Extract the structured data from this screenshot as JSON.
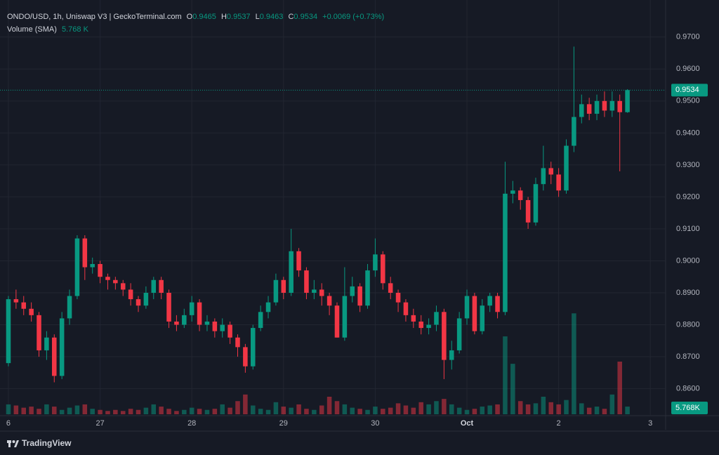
{
  "header": {
    "symbol": "ONDO/USD, 1h, Uniswap V3 | GeckoTerminal.com",
    "open_label": "O",
    "open": "0.9465",
    "high_label": "H",
    "high": "0.9537",
    "low_label": "L",
    "low": "0.9463",
    "close_label": "C",
    "close": "0.9534",
    "change": "+0.0069 (+0.73%)",
    "volume_label": "Volume (SMA)",
    "volume_value": "5.768 K"
  },
  "chart_data": {
    "type": "candlestick",
    "up_color": "#089981",
    "down_color": "#f23645",
    "grid": true,
    "x": [
      0,
      2,
      4,
      6,
      8,
      10,
      12,
      14,
      16,
      18,
      20,
      22,
      24,
      26,
      28,
      30,
      32,
      34,
      36,
      38,
      40,
      42,
      44,
      46,
      48,
      50,
      52,
      54,
      56,
      58,
      60,
      62,
      64,
      66,
      68,
      70,
      72,
      74,
      76,
      78,
      80,
      82,
      84,
      86,
      88,
      90,
      92,
      94,
      96,
      98,
      100,
      102,
      104,
      106,
      108,
      110,
      112,
      114,
      116,
      118,
      120,
      122,
      124,
      126,
      128,
      130,
      132,
      134,
      136,
      138,
      140,
      142,
      144,
      146,
      148,
      150,
      152,
      154,
      156,
      158,
      160,
      162
    ],
    "open": [
      0.868,
      0.888,
      0.887,
      0.885,
      0.883,
      0.872,
      0.876,
      0.864,
      0.882,
      0.889,
      0.907,
      0.898,
      0.899,
      0.895,
      0.894,
      0.893,
      0.891,
      0.888,
      0.886,
      0.89,
      0.894,
      0.89,
      0.881,
      0.88,
      0.883,
      0.887,
      0.88,
      0.881,
      0.878,
      0.88,
      0.876,
      0.873,
      0.867,
      0.879,
      0.884,
      0.887,
      0.894,
      0.89,
      0.903,
      0.897,
      0.89,
      0.891,
      0.889,
      0.886,
      0.876,
      0.889,
      0.892,
      0.886,
      0.897,
      0.902,
      0.893,
      0.89,
      0.887,
      0.883,
      0.881,
      0.879,
      0.88,
      0.884,
      0.869,
      0.872,
      0.882,
      0.889,
      0.878,
      0.886,
      0.889,
      0.884,
      0.921,
      0.922,
      0.919,
      0.912,
      0.924,
      0.929,
      0.927,
      0.922,
      0.936,
      0.945,
      0.949,
      0.946,
      0.95,
      0.947,
      0.95,
      0.9465
    ],
    "high": [
      0.889,
      0.891,
      0.889,
      0.887,
      0.884,
      0.878,
      0.877,
      0.884,
      0.891,
      0.908,
      0.908,
      0.901,
      0.9,
      0.896,
      0.895,
      0.894,
      0.893,
      0.889,
      0.892,
      0.895,
      0.895,
      0.891,
      0.883,
      0.885,
      0.889,
      0.888,
      0.883,
      0.882,
      0.882,
      0.881,
      0.877,
      0.874,
      0.88,
      0.886,
      0.889,
      0.896,
      0.895,
      0.91,
      0.904,
      0.898,
      0.894,
      0.893,
      0.89,
      0.887,
      0.898,
      0.895,
      0.893,
      0.899,
      0.907,
      0.903,
      0.895,
      0.891,
      0.888,
      0.885,
      0.883,
      0.882,
      0.886,
      0.885,
      0.875,
      0.884,
      0.891,
      0.89,
      0.888,
      0.89,
      0.89,
      0.931,
      0.925,
      0.923,
      0.92,
      0.926,
      0.936,
      0.931,
      0.929,
      0.938,
      0.967,
      0.952,
      0.951,
      0.952,
      0.953,
      0.953,
      0.952,
      0.9537
    ],
    "low": [
      0.867,
      0.885,
      0.883,
      0.881,
      0.87,
      0.869,
      0.862,
      0.863,
      0.88,
      0.888,
      0.894,
      0.896,
      0.893,
      0.891,
      0.891,
      0.889,
      0.886,
      0.884,
      0.885,
      0.888,
      0.888,
      0.879,
      0.878,
      0.879,
      0.881,
      0.878,
      0.878,
      0.876,
      0.876,
      0.874,
      0.87,
      0.865,
      0.866,
      0.878,
      0.882,
      0.886,
      0.888,
      0.889,
      0.895,
      0.888,
      0.888,
      0.886,
      0.883,
      0.876,
      0.875,
      0.887,
      0.884,
      0.885,
      0.895,
      0.891,
      0.888,
      0.884,
      0.881,
      0.879,
      0.877,
      0.877,
      0.878,
      0.863,
      0.866,
      0.871,
      0.88,
      0.877,
      0.877,
      0.884,
      0.882,
      0.883,
      0.918,
      0.916,
      0.91,
      0.911,
      0.922,
      0.924,
      0.92,
      0.921,
      0.934,
      0.943,
      0.944,
      0.944,
      0.945,
      0.945,
      0.928,
      0.9463
    ],
    "close": [
      0.888,
      0.887,
      0.885,
      0.883,
      0.872,
      0.876,
      0.864,
      0.882,
      0.889,
      0.907,
      0.898,
      0.899,
      0.895,
      0.894,
      0.893,
      0.891,
      0.888,
      0.886,
      0.89,
      0.894,
      0.89,
      0.881,
      0.88,
      0.883,
      0.887,
      0.88,
      0.881,
      0.878,
      0.88,
      0.876,
      0.873,
      0.867,
      0.879,
      0.884,
      0.887,
      0.894,
      0.89,
      0.903,
      0.897,
      0.89,
      0.891,
      0.889,
      0.886,
      0.876,
      0.889,
      0.892,
      0.886,
      0.897,
      0.902,
      0.893,
      0.89,
      0.887,
      0.883,
      0.881,
      0.879,
      0.88,
      0.884,
      0.869,
      0.872,
      0.882,
      0.889,
      0.878,
      0.886,
      0.889,
      0.884,
      0.921,
      0.922,
      0.919,
      0.912,
      0.924,
      0.929,
      0.927,
      0.922,
      0.936,
      0.945,
      0.949,
      0.946,
      0.95,
      0.947,
      0.95,
      0.9465,
      0.9534
    ],
    "volume": [
      9000,
      8000,
      6000,
      7000,
      5000,
      9000,
      7000,
      4000,
      6000,
      8000,
      9000,
      5000,
      4000,
      3000,
      4000,
      3000,
      5000,
      4000,
      6000,
      9000,
      7000,
      5000,
      3000,
      4000,
      6000,
      5000,
      4000,
      5000,
      9000,
      6000,
      12000,
      18000,
      8000,
      5000,
      4000,
      11000,
      7000,
      6000,
      9000,
      5000,
      4000,
      8000,
      16000,
      12000,
      9000,
      6000,
      5000,
      4000,
      7000,
      5000,
      6000,
      10000,
      8000,
      6000,
      11000,
      9000,
      12000,
      14000,
      9000,
      6000,
      4000,
      5000,
      7000,
      8000,
      9000,
      71000,
      46000,
      12000,
      9000,
      10000,
      16000,
      11000,
      9000,
      13000,
      92000,
      10000,
      6000,
      7000,
      5000,
      18000,
      48000,
      7000
    ],
    "xlim": [
      -2.2,
      172
    ],
    "xticks": [
      {
        "value": 0,
        "label": "6"
      },
      {
        "value": 24,
        "label": "27"
      },
      {
        "value": 48,
        "label": "28"
      },
      {
        "value": 72,
        "label": "29"
      },
      {
        "value": 96,
        "label": "30"
      },
      {
        "value": 120,
        "label": "Oct"
      },
      {
        "value": 144,
        "label": "2"
      },
      {
        "value": 168,
        "label": "3"
      }
    ],
    "ylim": [
      0.852,
      0.975
    ],
    "yticks": [
      {
        "value": 0.86,
        "label": "0.8600"
      },
      {
        "value": 0.87,
        "label": "0.8700"
      },
      {
        "value": 0.88,
        "label": "0.8800"
      },
      {
        "value": 0.89,
        "label": "0.8900"
      },
      {
        "value": 0.9,
        "label": "0.9000"
      },
      {
        "value": 0.91,
        "label": "0.9100"
      },
      {
        "value": 0.92,
        "label": "0.9200"
      },
      {
        "value": 0.93,
        "label": "0.9300"
      },
      {
        "value": 0.94,
        "label": "0.9400"
      },
      {
        "value": 0.95,
        "label": "0.9500"
      },
      {
        "value": 0.96,
        "label": "0.9600"
      },
      {
        "value": 0.97,
        "label": "0.9700"
      }
    ],
    "last_price": 0.9534,
    "volume_sma_label": "5.768K"
  },
  "footer": {
    "brand": "TradingView"
  }
}
